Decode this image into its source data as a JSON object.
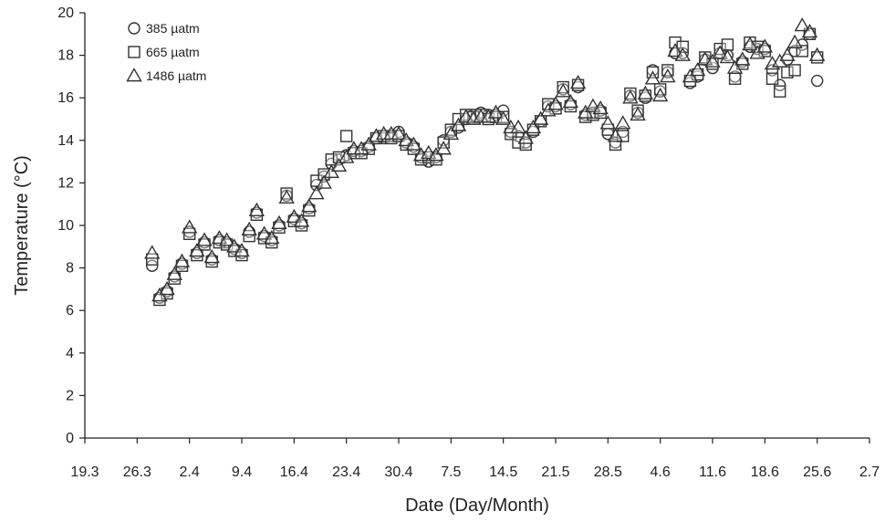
{
  "chart_data": {
    "type": "scatter",
    "xlabel": "Date (Day/Month)",
    "ylabel": "Temperature (°C)",
    "ylim": [
      0,
      20
    ],
    "yticks": [
      0,
      2,
      4,
      6,
      8,
      10,
      12,
      14,
      16,
      18,
      20
    ],
    "xlim": [
      "19.3",
      "2.7"
    ],
    "xtick_labels": [
      "19.3",
      "26.3",
      "2.4",
      "9.4",
      "16.4",
      "23.4",
      "30.4",
      "7.5",
      "14.5",
      "21.5",
      "28.5",
      "4.6",
      "11.6",
      "18.6",
      "25.6",
      "2.7"
    ],
    "grid": false,
    "legend_position": "top-left",
    "series": [
      {
        "name": "385 µatm",
        "marker": "circle",
        "x": [
          "28.3",
          "29.3",
          "30.3",
          "31.3",
          "1.4",
          "2.4",
          "3.4",
          "4.4",
          "5.4",
          "6.4",
          "7.4",
          "8.4",
          "9.4",
          "10.4",
          "11.4",
          "12.4",
          "13.4",
          "14.4",
          "15.4",
          "16.4",
          "17.4",
          "18.4",
          "19.4",
          "20.4",
          "21.4",
          "22.4",
          "23.4",
          "24.4",
          "25.4",
          "26.4",
          "27.4",
          "28.4",
          "29.4",
          "30.4",
          "1.5",
          "2.5",
          "3.5",
          "4.5",
          "5.5",
          "6.5",
          "7.5",
          "8.5",
          "9.5",
          "10.5",
          "11.5",
          "12.5",
          "13.5",
          "14.5",
          "15.5",
          "16.5",
          "17.5",
          "18.5",
          "19.5",
          "20.5",
          "21.5",
          "22.5",
          "23.5",
          "24.5",
          "25.5",
          "26.5",
          "27.5",
          "28.5",
          "29.5",
          "30.5",
          "31.5",
          "1.6",
          "2.6",
          "3.6",
          "4.6",
          "5.6",
          "6.6",
          "7.6",
          "8.6",
          "9.6",
          "10.6",
          "11.6",
          "12.6",
          "13.6",
          "14.6",
          "15.6",
          "16.6",
          "17.6",
          "18.6",
          "19.6",
          "20.6",
          "21.6",
          "22.6",
          "23.6",
          "24.6",
          "25.6"
        ],
        "y": [
          8.1,
          6.6,
          6.9,
          7.6,
          8.2,
          9.7,
          8.7,
          9.2,
          8.4,
          9.3,
          9.2,
          8.9,
          8.7,
          9.7,
          10.6,
          9.5,
          9.3,
          10.0,
          11.4,
          10.3,
          10.1,
          10.8,
          11.9,
          12.3,
          12.9,
          13.1,
          13.3,
          13.5,
          13.5,
          13.7,
          14.1,
          14.1,
          14.2,
          14.4,
          13.9,
          13.7,
          13.2,
          13.0,
          13.2,
          14.0,
          14.4,
          14.6,
          15.0,
          15.2,
          15.3,
          15.2,
          15.2,
          15.4,
          14.4,
          14.2,
          13.9,
          14.4,
          14.9,
          15.6,
          15.6,
          16.4,
          15.7,
          16.5,
          15.2,
          15.3,
          15.4,
          14.3,
          13.9,
          14.4,
          16.1,
          15.3,
          16.0,
          17.3,
          16.3,
          17.2,
          18.1,
          18.1,
          16.7,
          17.0,
          17.8,
          17.4,
          18.1,
          18.0,
          17.0,
          17.7,
          18.4,
          18.3,
          18.3,
          17.3,
          16.6,
          17.8,
          18.2,
          18.5,
          19.0,
          16.8
        ]
      },
      {
        "name": "665 µatm",
        "marker": "square",
        "x": [
          "28.3",
          "29.3",
          "30.3",
          "31.3",
          "1.4",
          "2.4",
          "3.4",
          "4.4",
          "5.4",
          "6.4",
          "7.4",
          "8.4",
          "9.4",
          "10.4",
          "11.4",
          "12.4",
          "13.4",
          "14.4",
          "15.4",
          "16.4",
          "17.4",
          "18.4",
          "19.4",
          "20.4",
          "21.4",
          "22.4",
          "23.4",
          "24.4",
          "25.4",
          "26.4",
          "27.4",
          "28.4",
          "29.4",
          "30.4",
          "1.5",
          "2.5",
          "3.5",
          "4.5",
          "5.5",
          "6.5",
          "7.5",
          "8.5",
          "9.5",
          "10.5",
          "11.5",
          "12.5",
          "13.5",
          "14.5",
          "15.5",
          "16.5",
          "17.5",
          "18.5",
          "19.5",
          "20.5",
          "21.5",
          "22.5",
          "23.5",
          "24.5",
          "25.5",
          "26.5",
          "27.5",
          "28.5",
          "29.5",
          "30.5",
          "31.5",
          "1.6",
          "2.6",
          "3.6",
          "4.6",
          "5.6",
          "6.6",
          "7.6",
          "8.6",
          "9.6",
          "10.6",
          "11.6",
          "12.6",
          "13.6",
          "14.6",
          "15.6",
          "16.6",
          "17.6",
          "18.6",
          "19.6",
          "20.6",
          "21.6",
          "22.6",
          "23.6",
          "24.6",
          "25.6"
        ],
        "y": [
          8.4,
          6.5,
          6.8,
          7.5,
          8.1,
          9.6,
          8.6,
          9.1,
          8.3,
          9.2,
          9.1,
          8.8,
          8.6,
          9.5,
          10.5,
          9.4,
          9.2,
          9.9,
          11.5,
          10.2,
          10.0,
          10.7,
          12.1,
          12.4,
          13.1,
          13.2,
          14.2,
          13.4,
          13.4,
          13.6,
          14.1,
          14.2,
          14.1,
          14.2,
          13.8,
          13.6,
          13.1,
          13.2,
          13.1,
          13.9,
          14.5,
          15.0,
          15.2,
          15.1,
          15.2,
          15.0,
          15.1,
          15.1,
          14.3,
          13.9,
          13.8,
          14.5,
          14.9,
          15.7,
          15.5,
          16.5,
          15.6,
          16.6,
          15.1,
          15.2,
          15.3,
          14.5,
          13.8,
          14.2,
          16.2,
          15.4,
          16.1,
          17.2,
          16.4,
          17.3,
          18.6,
          18.4,
          16.8,
          17.1,
          17.9,
          17.6,
          18.3,
          18.5,
          16.9,
          17.6,
          18.6,
          18.4,
          18.2,
          16.9,
          16.3,
          17.2,
          17.3,
          18.2,
          19.0,
          17.9
        ]
      },
      {
        "name": "1486 µatm",
        "marker": "triangle",
        "x": [
          "28.3",
          "29.3",
          "30.3",
          "31.3",
          "1.4",
          "2.4",
          "3.4",
          "4.4",
          "5.4",
          "6.4",
          "7.4",
          "8.4",
          "9.4",
          "10.4",
          "11.4",
          "12.4",
          "13.4",
          "14.4",
          "15.4",
          "16.4",
          "17.4",
          "18.4",
          "19.4",
          "20.4",
          "21.4",
          "22.4",
          "23.4",
          "24.4",
          "25.4",
          "26.4",
          "27.4",
          "28.4",
          "29.4",
          "30.4",
          "1.5",
          "2.5",
          "3.5",
          "4.5",
          "5.5",
          "6.5",
          "7.5",
          "8.5",
          "9.5",
          "10.5",
          "11.5",
          "12.5",
          "13.5",
          "14.5",
          "15.5",
          "16.5",
          "17.5",
          "18.5",
          "19.5",
          "20.5",
          "21.5",
          "22.5",
          "23.5",
          "24.5",
          "25.5",
          "26.5",
          "27.5",
          "28.5",
          "29.5",
          "30.5",
          "31.5",
          "1.6",
          "2.6",
          "3.6",
          "4.6",
          "5.6",
          "6.6",
          "7.6",
          "8.6",
          "9.6",
          "10.6",
          "11.6",
          "12.6",
          "13.6",
          "14.6",
          "15.6",
          "16.6",
          "17.6",
          "18.6",
          "19.6",
          "20.6",
          "21.6",
          "22.6",
          "23.6",
          "24.6",
          "25.6"
        ],
        "y": [
          8.7,
          6.7,
          7.0,
          7.7,
          8.3,
          9.9,
          8.8,
          9.3,
          8.5,
          9.4,
          9.3,
          9.0,
          8.8,
          9.8,
          10.7,
          9.6,
          9.4,
          10.1,
          11.3,
          10.4,
          10.2,
          10.9,
          11.5,
          12.0,
          12.5,
          12.8,
          13.2,
          13.6,
          13.6,
          13.8,
          14.2,
          14.3,
          14.3,
          14.3,
          14.0,
          13.8,
          13.3,
          13.4,
          13.3,
          13.6,
          14.3,
          14.7,
          15.1,
          15.0,
          15.1,
          15.1,
          15.3,
          15.0,
          14.6,
          14.6,
          14.1,
          14.6,
          15.0,
          15.4,
          15.7,
          16.3,
          15.8,
          16.7,
          15.3,
          15.6,
          15.5,
          14.8,
          14.2,
          14.8,
          16.0,
          15.2,
          16.2,
          16.9,
          16.1,
          17.0,
          18.2,
          18.0,
          17.0,
          17.3,
          17.8,
          17.7,
          18.1,
          17.9,
          17.4,
          17.8,
          18.5,
          18.1,
          18.4,
          17.6,
          17.7,
          18.0,
          18.6,
          19.4,
          19.1,
          18.0
        ]
      }
    ]
  }
}
